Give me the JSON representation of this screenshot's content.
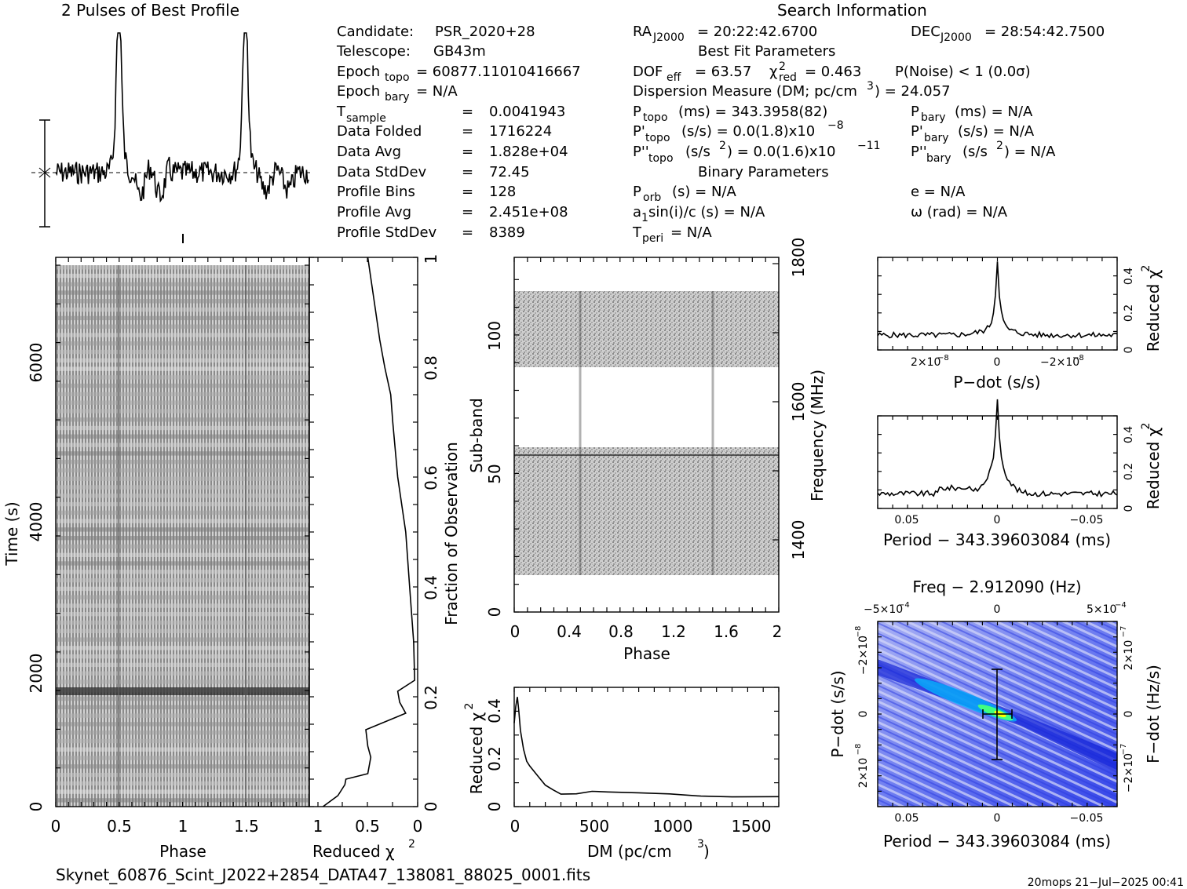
{
  "titles": {
    "profile": "2 Pulses of Best Profile",
    "search": "Search Information",
    "best_fit": "Best Fit Parameters",
    "binary": "Binary Parameters"
  },
  "info": {
    "candidate_label": "Candidate:",
    "candidate_value": "PSR_2020+28",
    "telescope_label": "Telescope:",
    "telescope_value": "GB43m",
    "epoch_topo_label": "Epoch",
    "epoch_topo_sub": "topo",
    "epoch_topo_value": "= 60877.11010416667",
    "epoch_bary_label": "Epoch",
    "epoch_bary_sub": "bary",
    "epoch_bary_value": "= N/A",
    "tsample_label": "T",
    "tsample_sub": "sample",
    "tsample_value": "0.0041943",
    "data_folded_label": "Data Folded",
    "data_folded_value": "1716224",
    "data_avg_label": "Data Avg",
    "data_avg_value": "1.828e+04",
    "data_stddev_label": "Data StdDev",
    "data_stddev_value": "72.45",
    "profile_bins_label": "Profile Bins",
    "profile_bins_value": "128",
    "profile_avg_label": "Profile Avg",
    "profile_avg_value": "2.451e+08",
    "profile_stddev_label": "Profile StdDev",
    "profile_stddev_value": "8389",
    "equals": "="
  },
  "search": {
    "ra_label": "RA",
    "ra_sub": "J2000",
    "ra_value": "= 20:22:42.6700",
    "dec_label": "DEC",
    "dec_sub": "J2000",
    "dec_value": "= 28:54:42.7500",
    "dof_label": "DOF",
    "dof_sub": "eff",
    "dof_value": "= 63.57",
    "chi2_label": "χ",
    "chi2_sup": "2",
    "chi2_sub": "red",
    "chi2_value": "= 0.463",
    "pnoise": "P(Noise) < 1   (0.0σ)",
    "dm_text": "Dispersion Measure (DM; pc/cm",
    "dm_sup": "3",
    "dm_value": ") = 24.057",
    "ptopo_label": "P",
    "ptopo_sub": "topo",
    "ptopo_value": "(ms) =  343.3958(82)",
    "pbary_label": "P",
    "pbary_sub": "bary",
    "pbary_value": "(ms) = N/A",
    "pdtopo_label": "P'",
    "pdtopo_sub": "topo",
    "pdtopo_value": "(s/s) = 0.0(1.8)x10",
    "pdtopo_exp": "−8",
    "pdbary_label": "P'",
    "pdbary_sub": "bary",
    "pdbary_value": "(s/s) = N/A",
    "pddtopo_label": "P''",
    "pddtopo_sub": "topo",
    "pddtopo_value": "(s/s",
    "pddtopo_sup": "2",
    "pddtopo_value2": ") = 0.0(1.6)x10",
    "pddtopo_exp": "−11",
    "pddbary_label": "P''",
    "pddbary_sub": "bary",
    "pddbary_value": "(s/s",
    "pddbary_sup": "2",
    "pddbary_value2": ") = N/A",
    "porb_label": "P",
    "porb_sub": "orb",
    "porb_value": "(s) = N/A",
    "asini_label": "a",
    "asini_sub": "1",
    "asini_value": "sin(i)/c (s) = N/A",
    "tperi_label": "T",
    "tperi_sub": "peri",
    "tperi_value": "= N/A",
    "e_value": "e = N/A",
    "omega_value": "ω (rad) = N/A"
  },
  "footer": {
    "filename": "Skynet_60876_Scint_J2022+2854_DATA47_138081_88025_0001.fits",
    "stamp": "20mops 21−Jul−2025 00:41"
  },
  "chart_data": [
    {
      "panel": "profile",
      "type": "line",
      "title": "2 Pulses of Best Profile",
      "xlim": [
        0,
        2
      ],
      "peaks_at_phase": [
        0.5,
        1.5
      ],
      "baseline_dashed": true,
      "error_bar": true
    },
    {
      "panel": "time-phase",
      "type": "heatmap",
      "xlabel": "Phase",
      "ylabel": "Time (s)",
      "xlim": [
        0,
        2
      ],
      "ylim": [
        0,
        7000
      ],
      "x_ticks": [
        "0",
        "0.5",
        "1",
        "1.5"
      ],
      "y_ticks": [
        "0",
        "2000",
        "4000",
        "6000"
      ]
    },
    {
      "panel": "time-chi2",
      "type": "line",
      "xlabel": "Reduced χ",
      "xlabel_sup": "2",
      "ylabel": "Fraction of Observation",
      "x_ticks": [
        "1",
        "0.5",
        "0"
      ],
      "y_ticks": [
        "0",
        "0.2",
        "0.4",
        "0.6",
        "0.8",
        "1"
      ],
      "x": [
        0.95,
        0.8,
        0.73,
        0.72,
        0.5,
        0.47,
        0.5,
        0.52,
        0.12,
        0.18,
        0.2,
        0.03,
        0.04,
        0.08,
        0.12,
        0.2,
        0.25,
        0.27,
        0.33,
        0.38,
        0.42,
        0.46,
        0.5
      ],
      "y": [
        0.0,
        0.02,
        0.04,
        0.05,
        0.06,
        0.09,
        0.11,
        0.14,
        0.17,
        0.19,
        0.21,
        0.23,
        0.3,
        0.4,
        0.5,
        0.6,
        0.7,
        0.75,
        0.8,
        0.85,
        0.9,
        0.95,
        1.0
      ]
    },
    {
      "panel": "subbands",
      "type": "heatmap",
      "xlabel": "Phase",
      "ylabel": "Sub-band",
      "y2label": "Frequency (MHz)",
      "xlim": [
        0,
        2
      ],
      "ylim": [
        0,
        128
      ],
      "x_ticks": [
        "0",
        "0.4",
        "0.8",
        "1.2",
        "1.6",
        "2"
      ],
      "y_ticks": [
        "0",
        "50",
        "100"
      ],
      "y2_ticks": [
        "1400",
        "1600",
        "1800"
      ],
      "data_bands": [
        [
          13,
          59
        ],
        [
          88,
          115
        ]
      ]
    },
    {
      "panel": "dm",
      "type": "line",
      "xlabel": "DM (pc/cm",
      "xlabel_sup": "3",
      "xlabel_tail": ")",
      "ylabel": "Reduced χ",
      "ylabel_sup": "2",
      "xlim": [
        0,
        1700
      ],
      "ylim": [
        0,
        0.5
      ],
      "x_ticks": [
        "0",
        "500",
        "1000",
        "1500"
      ],
      "y_ticks": [
        "0",
        "0.2",
        "0.4"
      ],
      "x": [
        0,
        10,
        20,
        30,
        40,
        60,
        80,
        100,
        150,
        200,
        250,
        300,
        400,
        500,
        600,
        800,
        1000,
        1200,
        1400,
        1700
      ],
      "y": [
        0.35,
        0.42,
        0.46,
        0.4,
        0.32,
        0.24,
        0.19,
        0.17,
        0.13,
        0.09,
        0.07,
        0.05,
        0.05,
        0.07,
        0.06,
        0.06,
        0.05,
        0.05,
        0.04,
        0.04
      ]
    },
    {
      "panel": "pdot",
      "type": "line",
      "xlabel": "P−dot (s/s)",
      "ylabel": "Reduced χ",
      "ylabel_sup": "2",
      "x_ticks": [
        "2×10",
        "0",
        "−2×10"
      ],
      "x_tick_exp": "−8",
      "y_ticks": [
        "0",
        "0.2",
        "0.4"
      ],
      "ylim": [
        0,
        0.5
      ],
      "peak": 0.46
    },
    {
      "panel": "period",
      "type": "line",
      "xlabel": "Period − 343.39603084 (ms)",
      "ylabel": "Reduced χ",
      "ylabel_sup": "2",
      "x_ticks": [
        "0.05",
        "0",
        "−0.05"
      ],
      "y_ticks": [
        "0",
        "0.2",
        "0.4"
      ],
      "ylim": [
        0,
        0.5
      ],
      "peak": 0.46
    },
    {
      "panel": "pp-dot",
      "type": "heatmap",
      "title": "Freq − 2.912090 (Hz)",
      "xlabel": "Period − 343.39603084 (ms)",
      "ylabel": "P−dot (s/s)",
      "y2label": "F−dot (Hz/s)",
      "x_ticks": [
        "0.05",
        "0",
        "−0.05"
      ],
      "top_ticks": [
        "−5×10",
        "0",
        "5×10"
      ],
      "top_tick_exp": "−4",
      "y_ticks": [
        "2×10",
        "0",
        "−2×10"
      ],
      "y_tick_exp": "−8",
      "y2_ticks": [
        "−2×10",
        "0",
        "2×10"
      ],
      "y2_tick_exp": "−7",
      "colors": [
        "#1c2cf0",
        "#5a6cf0",
        "#9aa8f5",
        "#c8cef8",
        "#00c8ff",
        "#40ff80",
        "#ffff00"
      ]
    }
  ]
}
